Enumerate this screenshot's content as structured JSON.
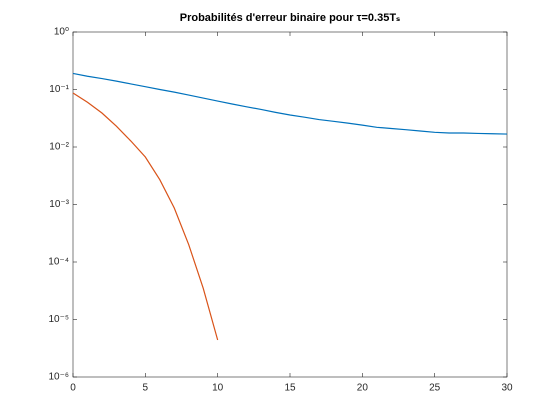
{
  "chart_data": {
    "type": "line",
    "title": "Probabilités d'erreur binaire pour τ=0.35Tₛ",
    "x": [
      0,
      1,
      2,
      3,
      4,
      5,
      6,
      7,
      8,
      9,
      10,
      11,
      12,
      13,
      14,
      15,
      16,
      17,
      18,
      19,
      20,
      21,
      22,
      23,
      24,
      25,
      26,
      27,
      28,
      29,
      30
    ],
    "series": [
      {
        "color": "#0072bd",
        "values": [
          0.19,
          0.17,
          0.155,
          0.14,
          0.125,
          0.112,
          0.1,
          0.09,
          0.08,
          0.071,
          0.063,
          0.056,
          0.05,
          0.045,
          0.04,
          0.036,
          0.033,
          0.03,
          0.028,
          0.026,
          0.024,
          0.022,
          0.021,
          0.02,
          0.019,
          0.018,
          0.0175,
          0.0175,
          0.0172,
          0.017,
          0.0168
        ]
      },
      {
        "color": "#d95319",
        "values": [
          0.087,
          0.06,
          0.039,
          0.023,
          0.0127,
          0.0067,
          0.0027,
          0.00087,
          0.0002,
          3.5e-05,
          4.4e-06,
          null,
          null,
          null,
          null,
          null,
          null,
          null,
          null,
          null,
          null,
          null,
          null,
          null,
          null,
          null,
          null,
          null,
          null,
          null,
          null
        ]
      }
    ],
    "xlim": [
      0,
      30
    ],
    "xticks": [
      0,
      5,
      10,
      15,
      20,
      25,
      30
    ],
    "ylim": [
      1e-06,
      1
    ],
    "log_y": true,
    "yticks": [
      {
        "value": 1e-06,
        "label": "10⁻⁶"
      },
      {
        "value": 1e-05,
        "label": "10⁻⁵"
      },
      {
        "value": 0.0001,
        "label": "10⁻⁴"
      },
      {
        "value": 0.001,
        "label": "10⁻³"
      },
      {
        "value": 0.01,
        "label": "10⁻²"
      },
      {
        "value": 0.1,
        "label": "10⁻¹"
      },
      {
        "value": 1,
        "label": "10⁰"
      }
    ]
  }
}
